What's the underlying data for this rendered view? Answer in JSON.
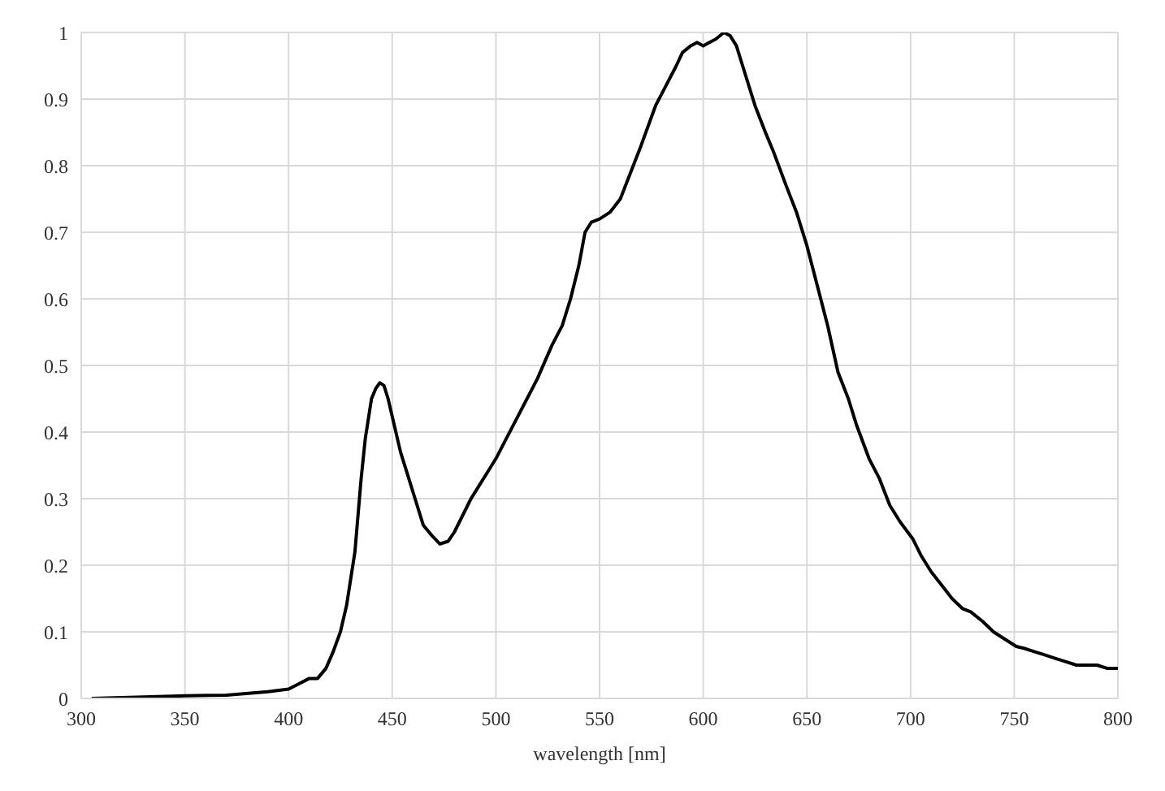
{
  "chart_data": {
    "type": "line",
    "xlabel": "wavelength [nm]",
    "x": [
      305,
      330,
      350,
      370,
      390,
      400,
      405,
      410,
      414,
      418,
      421.5,
      425,
      428,
      430,
      432,
      435,
      437,
      440,
      442,
      444,
      446,
      448,
      451,
      454,
      457.7,
      461,
      465,
      469,
      473,
      477,
      480,
      484,
      488,
      492,
      496,
      500,
      505,
      510,
      515,
      520,
      527,
      532,
      536,
      540,
      543,
      546,
      550,
      555,
      560,
      565,
      570,
      577,
      582,
      587,
      590,
      594,
      597,
      600,
      603,
      606,
      610,
      613,
      616,
      619,
      621.5,
      625,
      630,
      634,
      640,
      645,
      650,
      655,
      660,
      665,
      670,
      674,
      680,
      685,
      690,
      695,
      701,
      705,
      710,
      715,
      720,
      725,
      729,
      735,
      740,
      745,
      751,
      755,
      760,
      765,
      770,
      775,
      780,
      785,
      790,
      795,
      800
    ],
    "series": [
      {
        "color": "#000000",
        "values": [
          0,
          0.002,
          0.004,
          0.005,
          0.01,
          0.014,
          0.022,
          0.03,
          0.03,
          0.045,
          0.07,
          0.1,
          0.14,
          0.18,
          0.22,
          0.33,
          0.39,
          0.45,
          0.465,
          0.474,
          0.47,
          0.45,
          0.41,
          0.37,
          0.333,
          0.3,
          0.26,
          0.245,
          0.232,
          0.236,
          0.25,
          0.275,
          0.3,
          0.32,
          0.34,
          0.36,
          0.39,
          0.42,
          0.45,
          0.48,
          0.53,
          0.56,
          0.6,
          0.65,
          0.7,
          0.715,
          0.72,
          0.73,
          0.75,
          0.79,
          0.83,
          0.89,
          0.92,
          0.95,
          0.97,
          0.98,
          0.985,
          0.98,
          0.985,
          0.99,
          1.0,
          0.995,
          0.98,
          0.95,
          0.925,
          0.89,
          0.85,
          0.82,
          0.77,
          0.73,
          0.68,
          0.62,
          0.56,
          0.49,
          0.45,
          0.41,
          0.36,
          0.33,
          0.29,
          0.265,
          0.24,
          0.215,
          0.19,
          0.17,
          0.15,
          0.135,
          0.13,
          0.115,
          0.1,
          0.09,
          0.078,
          0.075,
          0.07,
          0.065,
          0.06,
          0.055,
          0.05,
          0.05,
          0.05,
          0.045,
          0.045
        ]
      }
    ],
    "xlim": [
      300,
      800
    ],
    "xticks": [
      300,
      350,
      400,
      450,
      500,
      550,
      600,
      650,
      700,
      750,
      800
    ],
    "ylim": [
      0,
      1
    ],
    "yticks": [
      0,
      0.1,
      0.2,
      0.3,
      0.4,
      0.5,
      0.6,
      0.7,
      0.8,
      0.9,
      1
    ],
    "grid": true,
    "legend": false,
    "marker": "none",
    "line_style": "solid"
  }
}
